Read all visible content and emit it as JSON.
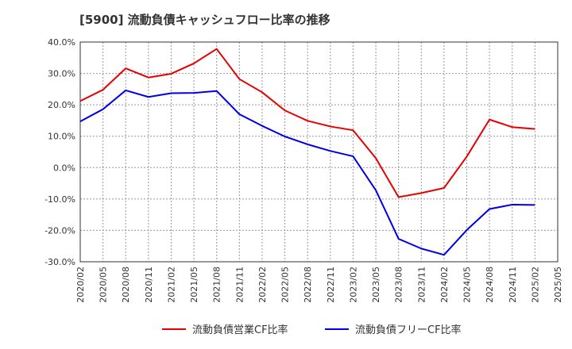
{
  "chart_data": {
    "type": "line",
    "title": "[5900]  流動負債キャッシュフロー比率の推移",
    "xlabel": "",
    "ylabel": "",
    "ylim": [
      -30,
      40
    ],
    "yticks": [
      40,
      30,
      20,
      10,
      0,
      -10,
      -20,
      -30
    ],
    "ytick_labels": [
      "40.0%",
      "30.0%",
      "20.0%",
      "10.0%",
      "0.0%",
      "-10.0%",
      "-20.0%",
      "-30.0%"
    ],
    "x_labels": [
      "2020/02",
      "2020/05",
      "2020/08",
      "2020/11",
      "2021/02",
      "2021/05",
      "2021/08",
      "2021/11",
      "2022/02",
      "2022/05",
      "2022/08",
      "2022/11",
      "2023/02",
      "2023/05",
      "2023/08",
      "2023/11",
      "2024/02",
      "2024/05",
      "2024/08",
      "2024/11",
      "2025/02",
      "2025/05"
    ],
    "grid": true,
    "legend_position": "bottom",
    "series": [
      {
        "name": "流動負債営業CF比率",
        "color": "#e60000",
        "values": [
          21.2,
          24.8,
          31.6,
          28.7,
          29.9,
          33.2,
          37.8,
          28.2,
          24.0,
          18.2,
          14.9,
          13.1,
          11.9,
          3.0,
          -9.4,
          -8.1,
          -6.5,
          3.5,
          15.3,
          12.9,
          12.3,
          null
        ]
      },
      {
        "name": "流動負債フリーCF比率",
        "color": "#0000e6",
        "values": [
          14.7,
          18.6,
          24.6,
          22.5,
          23.7,
          23.8,
          24.4,
          17.0,
          13.3,
          9.9,
          7.4,
          5.3,
          3.6,
          -7.2,
          -22.7,
          -25.8,
          -27.8,
          -19.9,
          -13.2,
          -11.8,
          -11.9,
          null
        ]
      }
    ]
  }
}
